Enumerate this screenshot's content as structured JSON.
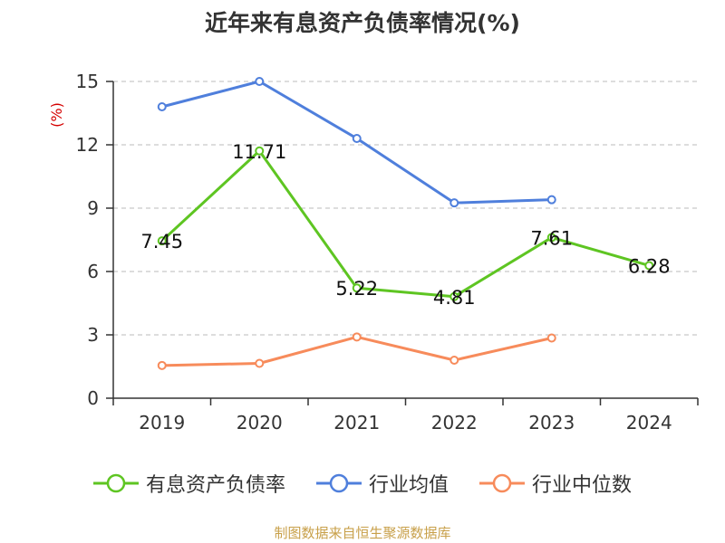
{
  "source": "制图数据来自恒生聚源数据库",
  "colors": {
    "series": [
      "#5ec522",
      "#4f7fdc",
      "#f78b5b"
    ],
    "axis": "#333333",
    "grid": "#bbbbbb",
    "unit": "#d40000"
  },
  "chart_data": {
    "type": "line",
    "title": "近年来有息资产负债率情况(%)",
    "ylabel": "(%)",
    "categories": [
      "2019",
      "2020",
      "2021",
      "2022",
      "2023",
      "2024"
    ],
    "ylim": [
      0,
      15
    ],
    "yticks": [
      0,
      3,
      6,
      9,
      12,
      15
    ],
    "grid": true,
    "legend_position": "bottom",
    "series": [
      {
        "name": "有息资产负债率",
        "values": [
          7.45,
          11.71,
          5.22,
          4.81,
          7.61,
          6.28
        ],
        "labels": [
          "7.45",
          "11.71",
          "5.22",
          "4.81",
          "7.61",
          "6.28"
        ]
      },
      {
        "name": "行业均值",
        "values": [
          13.8,
          15.0,
          12.3,
          9.25,
          9.4,
          null
        ]
      },
      {
        "name": "行业中位数",
        "values": [
          1.55,
          1.65,
          2.9,
          1.8,
          2.85,
          null
        ]
      }
    ]
  }
}
